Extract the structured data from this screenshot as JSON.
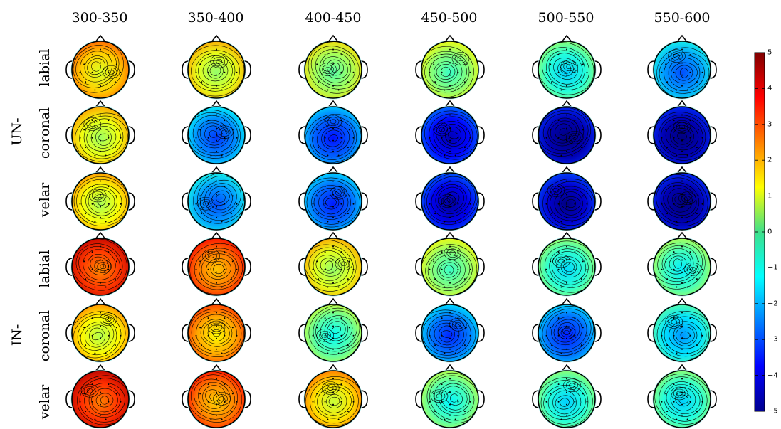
{
  "time_windows": [
    "300-350",
    "350-400",
    "400-450",
    "450-500",
    "500-550",
    "550-600"
  ],
  "groups": [
    {
      "label": "UN-",
      "rows": [
        "labial",
        "coronal",
        "velar"
      ]
    },
    {
      "label": "IN-",
      "rows": [
        "labial",
        "coronal",
        "velar"
      ]
    }
  ],
  "colorbar": {
    "min": -5,
    "max": 5,
    "ticks": [
      "5",
      "4",
      "3",
      "2",
      "1",
      "0",
      "−1",
      "−2",
      "−3",
      "−4",
      "−5"
    ],
    "colormap": "jet"
  },
  "mean_amplitude": [
    [
      1.7,
      1.0,
      0.4,
      0.1,
      -0.9,
      -2.2
    ],
    [
      1.1,
      -2.4,
      -2.8,
      -3.7,
      -4.5,
      -4.5
    ],
    [
      1.2,
      -2.2,
      -2.7,
      -3.9,
      -4.2,
      -4.5
    ],
    [
      3.2,
      2.6,
      1.0,
      0.1,
      -0.8,
      -0.6
    ],
    [
      1.3,
      2.1,
      -0.4,
      -2.6,
      -2.7,
      -1.5
    ],
    [
      3.3,
      2.5,
      1.5,
      -0.5,
      -0.9,
      -0.9
    ]
  ]
}
